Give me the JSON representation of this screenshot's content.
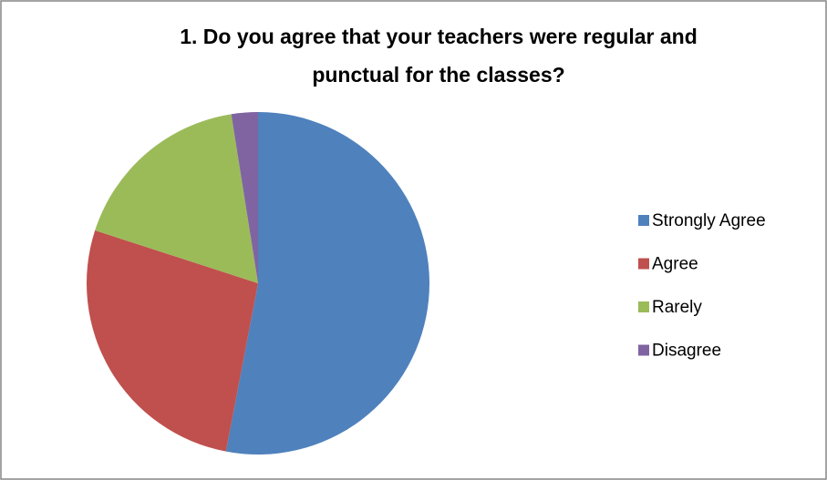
{
  "chart_data": {
    "type": "pie",
    "title": [
      "1. Do you agree that your teachers were regular and",
      "punctual for the classes?"
    ],
    "categories": [
      "Strongly Agree",
      "Agree",
      "Rarely",
      "Disagree"
    ],
    "values": [
      53,
      27,
      17.5,
      2.5
    ],
    "colors": [
      "#4f81bd",
      "#c0504d",
      "#9bbb59",
      "#8064a2"
    ],
    "legend": "right"
  }
}
